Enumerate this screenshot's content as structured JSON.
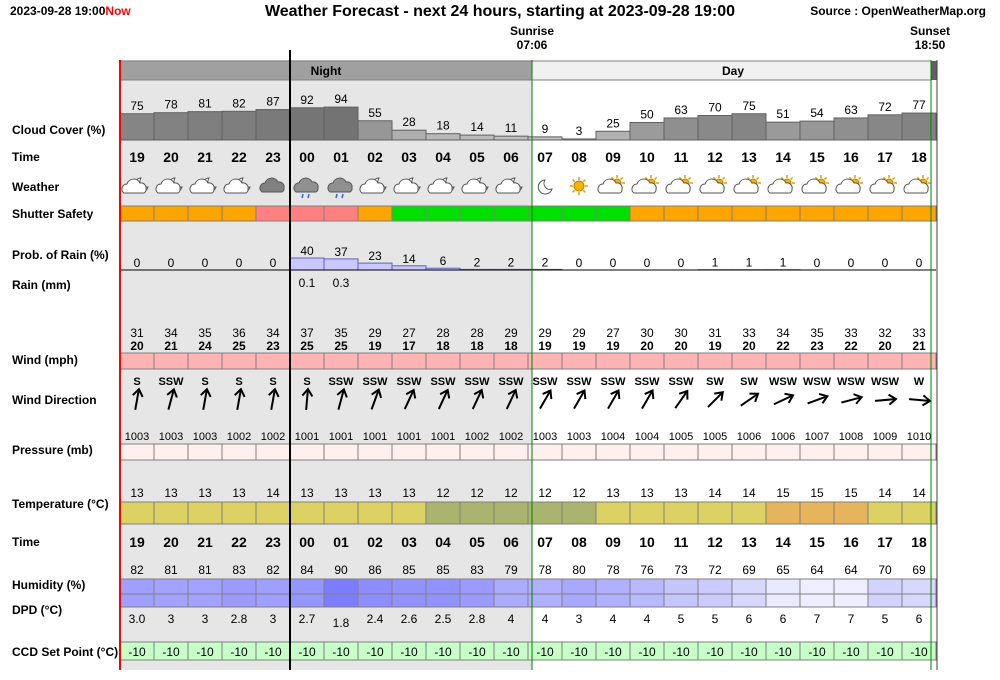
{
  "header": {
    "timestamp": "2023-09-28 19:00",
    "now_label": "Now",
    "title": "Weather Forecast - next 24 hours, starting at 2023-09-28 19:00",
    "source": "Source : OpenWeatherMap.org"
  },
  "sun": {
    "sunrise_label": "Sunrise",
    "sunrise_time": "07:06",
    "sunset_label": "Sunset",
    "sunset_time": "18:50"
  },
  "bands": {
    "night_label": "Night",
    "day_label": "Day"
  },
  "row_labels": {
    "cloud": "Cloud Cover (%)",
    "time": "Time",
    "weather": "Weather",
    "shutter": "Shutter Safety",
    "rain_prob": "Prob. of Rain (%)",
    "rain_mm": "Rain (mm)",
    "wind": "Wind (mph)",
    "wind_dir": "Wind Direction",
    "pressure": "Pressure (mb)",
    "temperature": "Temperature (°C)",
    "time2": "Time",
    "humidity": "Humidity (%)",
    "dpd": "DPD (°C)",
    "ccd": "CCD Set Point (°C)"
  },
  "colors": {
    "cloud": "#808080",
    "shutter_orange": "#ffa500",
    "shutter_green": "#00e000",
    "shutter_red": "#ff8080",
    "rain": "#c8c8ff",
    "wind": "#ffb4b4",
    "pressure": "#fff0f0",
    "temp_yellow": "#dcd264",
    "temp_olive": "#aab46e",
    "temp_orange": "#e6b45a",
    "humidity": "#9696ff",
    "ccd": "#c8ffc8",
    "night_band": "#e6e6e6",
    "day_band": "#ffffff"
  },
  "chart_data": {
    "type": "table",
    "hours": [
      "19",
      "20",
      "21",
      "22",
      "23",
      "00",
      "01",
      "02",
      "03",
      "04",
      "05",
      "06",
      "07",
      "08",
      "09",
      "10",
      "11",
      "12",
      "13",
      "14",
      "15",
      "16",
      "17",
      "18"
    ],
    "cloud_cover": [
      75,
      78,
      81,
      82,
      87,
      92,
      94,
      55,
      28,
      18,
      14,
      11,
      9,
      3,
      25,
      50,
      63,
      70,
      75,
      51,
      54,
      63,
      72,
      77
    ],
    "weather_icons": [
      "partly-cloudy-night",
      "partly-cloudy-night",
      "partly-cloudy-night",
      "partly-cloudy-night",
      "dark-cloud",
      "rain-cloud",
      "rain-cloud",
      "partly-cloudy-night",
      "partly-cloudy-night",
      "partly-cloudy-night",
      "partly-cloudy-night",
      "partly-cloudy-night",
      "moon",
      "sun",
      "partly-cloudy-day",
      "partly-cloudy-day",
      "partly-cloudy-day",
      "partly-cloudy-day",
      "partly-cloudy-day",
      "partly-cloudy-day",
      "partly-cloudy-day",
      "partly-cloudy-day",
      "partly-cloudy-day",
      "partly-cloudy-day"
    ],
    "shutter_safety": [
      "orange",
      "orange",
      "orange",
      "orange",
      "red",
      "red",
      "red",
      "orange",
      "green",
      "green",
      "green",
      "green",
      "green",
      "green",
      "green",
      "orange",
      "orange",
      "orange",
      "orange",
      "orange",
      "orange",
      "orange",
      "orange",
      "orange"
    ],
    "rain_probability": [
      0,
      0,
      0,
      0,
      0,
      40,
      37,
      23,
      14,
      6,
      2,
      2,
      2,
      0,
      0,
      0,
      0,
      1,
      1,
      1,
      0,
      0,
      0,
      0
    ],
    "rain_mm": [
      "",
      "",
      "",
      "",
      "",
      "0.1",
      "0.3",
      "",
      "",
      "",
      "",
      "",
      "",
      "",
      "",
      "",
      "",
      "",
      "",
      "",
      "",
      "",
      "",
      ""
    ],
    "wind_gust": [
      31,
      34,
      35,
      36,
      34,
      37,
      35,
      29,
      27,
      28,
      28,
      29,
      29,
      29,
      27,
      30,
      30,
      31,
      33,
      34,
      35,
      33,
      32,
      33
    ],
    "wind_speed": [
      20,
      21,
      24,
      25,
      23,
      25,
      25,
      19,
      17,
      18,
      18,
      18,
      19,
      19,
      19,
      20,
      20,
      19,
      20,
      22,
      23,
      22,
      20,
      21
    ],
    "wind_direction": [
      "S",
      "SSW",
      "S",
      "S",
      "S",
      "S",
      "SSW",
      "SSW",
      "SSW",
      "SSW",
      "SSW",
      "SSW",
      "SSW",
      "SSW",
      "SSW",
      "SSW",
      "SSW",
      "SW",
      "SW",
      "WSW",
      "WSW",
      "WSW",
      "WSW",
      "W"
    ],
    "wind_bearing_deg": [
      190,
      195,
      190,
      190,
      190,
      185,
      195,
      200,
      205,
      205,
      205,
      205,
      210,
      210,
      210,
      210,
      215,
      225,
      235,
      245,
      250,
      255,
      265,
      275
    ],
    "pressure": [
      1003,
      1003,
      1003,
      1002,
      1002,
      1001,
      1001,
      1001,
      1001,
      1001,
      1002,
      1002,
      1003,
      1003,
      1004,
      1004,
      1005,
      1005,
      1006,
      1006,
      1007,
      1008,
      1009,
      1010
    ],
    "temperature": [
      13,
      13,
      13,
      13,
      14,
      13,
      13,
      13,
      13,
      12,
      12,
      12,
      12,
      12,
      13,
      13,
      13,
      14,
      14,
      15,
      15,
      15,
      14,
      14
    ],
    "humidity": [
      82,
      81,
      81,
      83,
      82,
      84,
      90,
      86,
      85,
      85,
      83,
      79,
      78,
      80,
      78,
      76,
      73,
      72,
      69,
      65,
      64,
      64,
      70,
      69
    ],
    "dpd": [
      "3.0",
      "3",
      "3",
      "2.8",
      "3",
      "2.7",
      "1.8",
      "2.4",
      "2.6",
      "2.5",
      "2.8",
      "4",
      "4",
      "3",
      "4",
      "4",
      "5",
      "5",
      "6",
      "6",
      "7",
      "7",
      "5",
      "6"
    ],
    "ccd_set_point": [
      -10,
      -10,
      -10,
      -10,
      -10,
      -10,
      -10,
      -10,
      -10,
      -10,
      -10,
      -10,
      -10,
      -10,
      -10,
      -10,
      -10,
      -10,
      -10,
      -10,
      -10,
      -10,
      -10,
      -10
    ]
  }
}
